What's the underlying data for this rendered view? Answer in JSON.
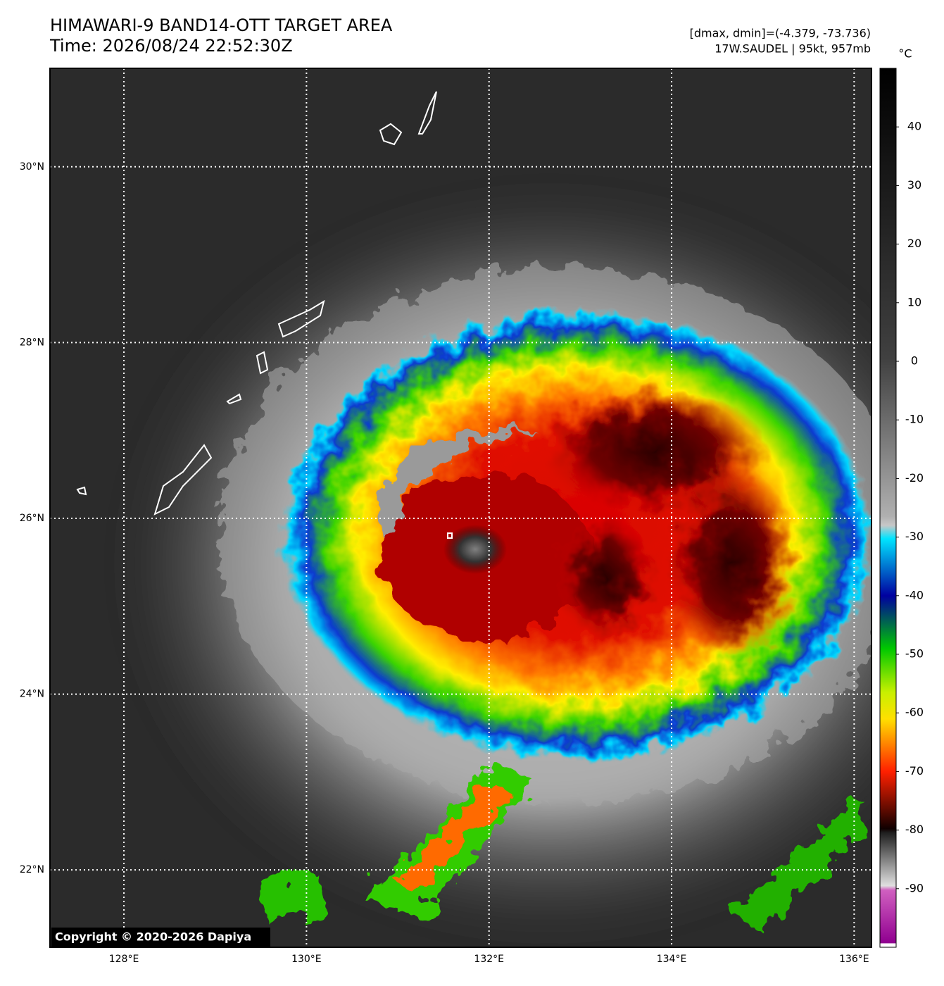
{
  "header": {
    "title": "HIMAWARI-9 BAND14-OTT TARGET AREA",
    "time": "Time: 2026/08/24 22:52:30Z",
    "range_info": "[dmax, dmin]=(-4.379, -73.736)",
    "storm_info": "17W.SAUDEL | 95kt, 957mb"
  },
  "map": {
    "lonlim": [
      127.19,
      136.19
    ],
    "latlim": [
      21.12,
      31.12
    ],
    "lat_ticks": [
      {
        "value": 30,
        "label": "30°N"
      },
      {
        "value": 28,
        "label": "28°N"
      },
      {
        "value": 26,
        "label": "26°N"
      },
      {
        "value": 24,
        "label": "24°N"
      },
      {
        "value": 22,
        "label": "22°N"
      }
    ],
    "lon_ticks": [
      {
        "value": 128,
        "label": "128°E"
      },
      {
        "value": 130,
        "label": "130°E"
      },
      {
        "value": 132,
        "label": "132°E"
      },
      {
        "value": 134,
        "label": "134°E"
      },
      {
        "value": 136,
        "label": "136°E"
      }
    ],
    "grid": true
  },
  "colorbar": {
    "unit": "°C",
    "clim": [
      -100,
      50
    ],
    "ticks": [
      40,
      30,
      20,
      10,
      0,
      -10,
      -20,
      -30,
      -40,
      -50,
      -60,
      -70,
      -80,
      -90
    ]
  },
  "copyright": "Copyright © 2020-2026 Dapiya"
}
